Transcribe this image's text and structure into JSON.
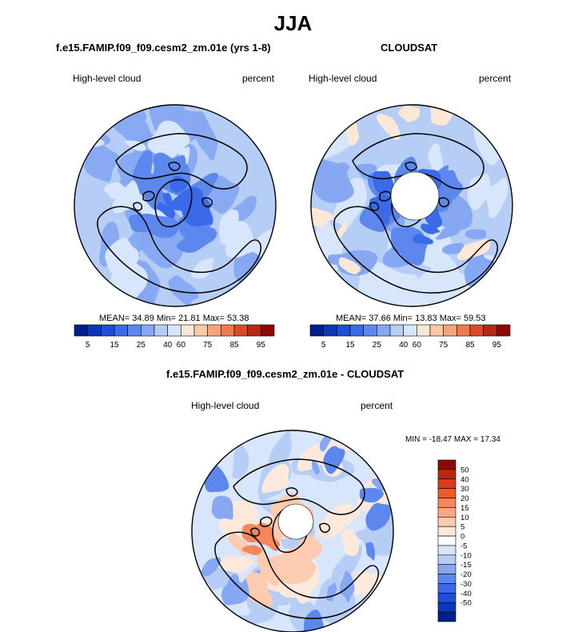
{
  "main_title": "JJA",
  "chart_data": [
    {
      "type": "heatmap",
      "projection": "north-polar-stereographic",
      "title": "f.e15.FAMIP.f09_f09.cesm2_zm.01e (yrs 1-8)",
      "left_label": "High-level cloud",
      "right_label": "percent",
      "stats": {
        "mean_label": "MEAN=",
        "mean": "34.89",
        "min_label": "Min=",
        "min": "21.81",
        "max_label": "Max=",
        "max": "53.38"
      },
      "colorbar": {
        "orientation": "horizontal",
        "colors": [
          "#001f8f",
          "#0a38b8",
          "#1d4fd8",
          "#3a6ae8",
          "#5c88ee",
          "#86a8f2",
          "#b6cdf6",
          "#d8e6fb",
          "#fde8d6",
          "#fbc9a6",
          "#f6a47c",
          "#ee7a50",
          "#dc4a2a",
          "#b82914",
          "#8c0a06"
        ],
        "tick_labels": [
          "5",
          "15",
          "25",
          "40",
          "60",
          "75",
          "85",
          "95"
        ],
        "levels": [
          5,
          10,
          15,
          20,
          25,
          30,
          40,
          50,
          60,
          70,
          75,
          80,
          85,
          90,
          95
        ]
      }
    },
    {
      "type": "heatmap",
      "projection": "north-polar-stereographic",
      "title": "CLOUDSAT",
      "left_label": "High-level cloud",
      "right_label": "percent",
      "stats": {
        "mean_label": "MEAN=",
        "mean": "37.66",
        "min_label": "Min=",
        "min": "13.83",
        "max_label": "Max=",
        "max": "59.53"
      },
      "colorbar": {
        "orientation": "horizontal",
        "colors": [
          "#001f8f",
          "#0a38b8",
          "#1d4fd8",
          "#3a6ae8",
          "#5c88ee",
          "#86a8f2",
          "#b6cdf6",
          "#d8e6fb",
          "#fde8d6",
          "#fbc9a6",
          "#f6a47c",
          "#ee7a50",
          "#dc4a2a",
          "#b82914",
          "#8c0a06"
        ],
        "tick_labels": [
          "5",
          "15",
          "25",
          "40",
          "60",
          "75",
          "85",
          "95"
        ],
        "levels": [
          5,
          10,
          15,
          20,
          25,
          30,
          40,
          50,
          60,
          70,
          75,
          80,
          85,
          90,
          95
        ]
      }
    },
    {
      "type": "heatmap",
      "projection": "north-polar-stereographic",
      "title": "f.e15.FAMIP.f09_f09.cesm2_zm.01e - CLOUDSAT",
      "left_label": "High-level cloud",
      "right_label": "percent",
      "stats_text": "MIN = -18.47 MAX =  17.34",
      "colorbar": {
        "orientation": "vertical",
        "colors_top_to_bottom": [
          "#8c0a06",
          "#b82914",
          "#dc3a1a",
          "#ee5a2a",
          "#f6865c",
          "#fba886",
          "#fdcbb0",
          "#fde8dc",
          "#ffffff",
          "#d8e6fb",
          "#b6cdf6",
          "#86a8f2",
          "#5c88ee",
          "#3a6ae8",
          "#1d4fd8",
          "#0a38b8",
          "#001f8f"
        ],
        "tick_labels_top_to_bottom": [
          "50",
          "40",
          "30",
          "20",
          "15",
          "10",
          "5",
          "0",
          "-5",
          "-10",
          "-15",
          "-20",
          "-30",
          "-40",
          "-50"
        ]
      }
    }
  ]
}
